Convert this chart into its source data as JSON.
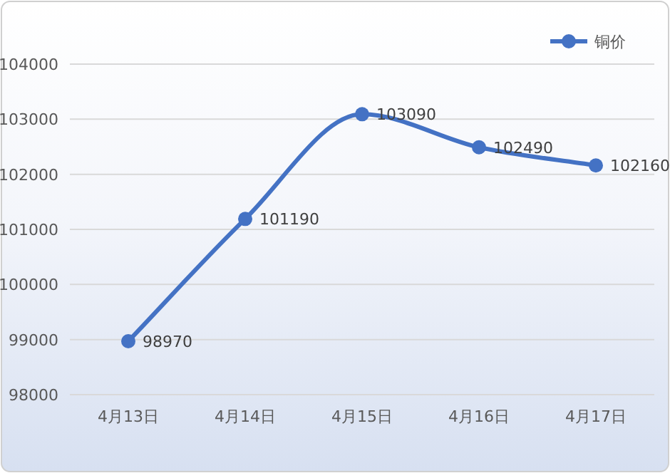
{
  "chart_data": {
    "type": "line",
    "categories": [
      "4月13日",
      "4月14日",
      "4月15日",
      "4月16日",
      "4月17日"
    ],
    "series": [
      {
        "name": "铜价",
        "color": "#4472c4",
        "values": [
          98970,
          101190,
          103090,
          102490,
          102160
        ]
      }
    ],
    "ylim": [
      98000,
      104000
    ],
    "yticks": [
      98000,
      99000,
      100000,
      101000,
      102000,
      103000,
      104000
    ],
    "grid": "y",
    "legend": "top right",
    "marker": "circle",
    "line_style": "solid",
    "data_labels": true
  }
}
